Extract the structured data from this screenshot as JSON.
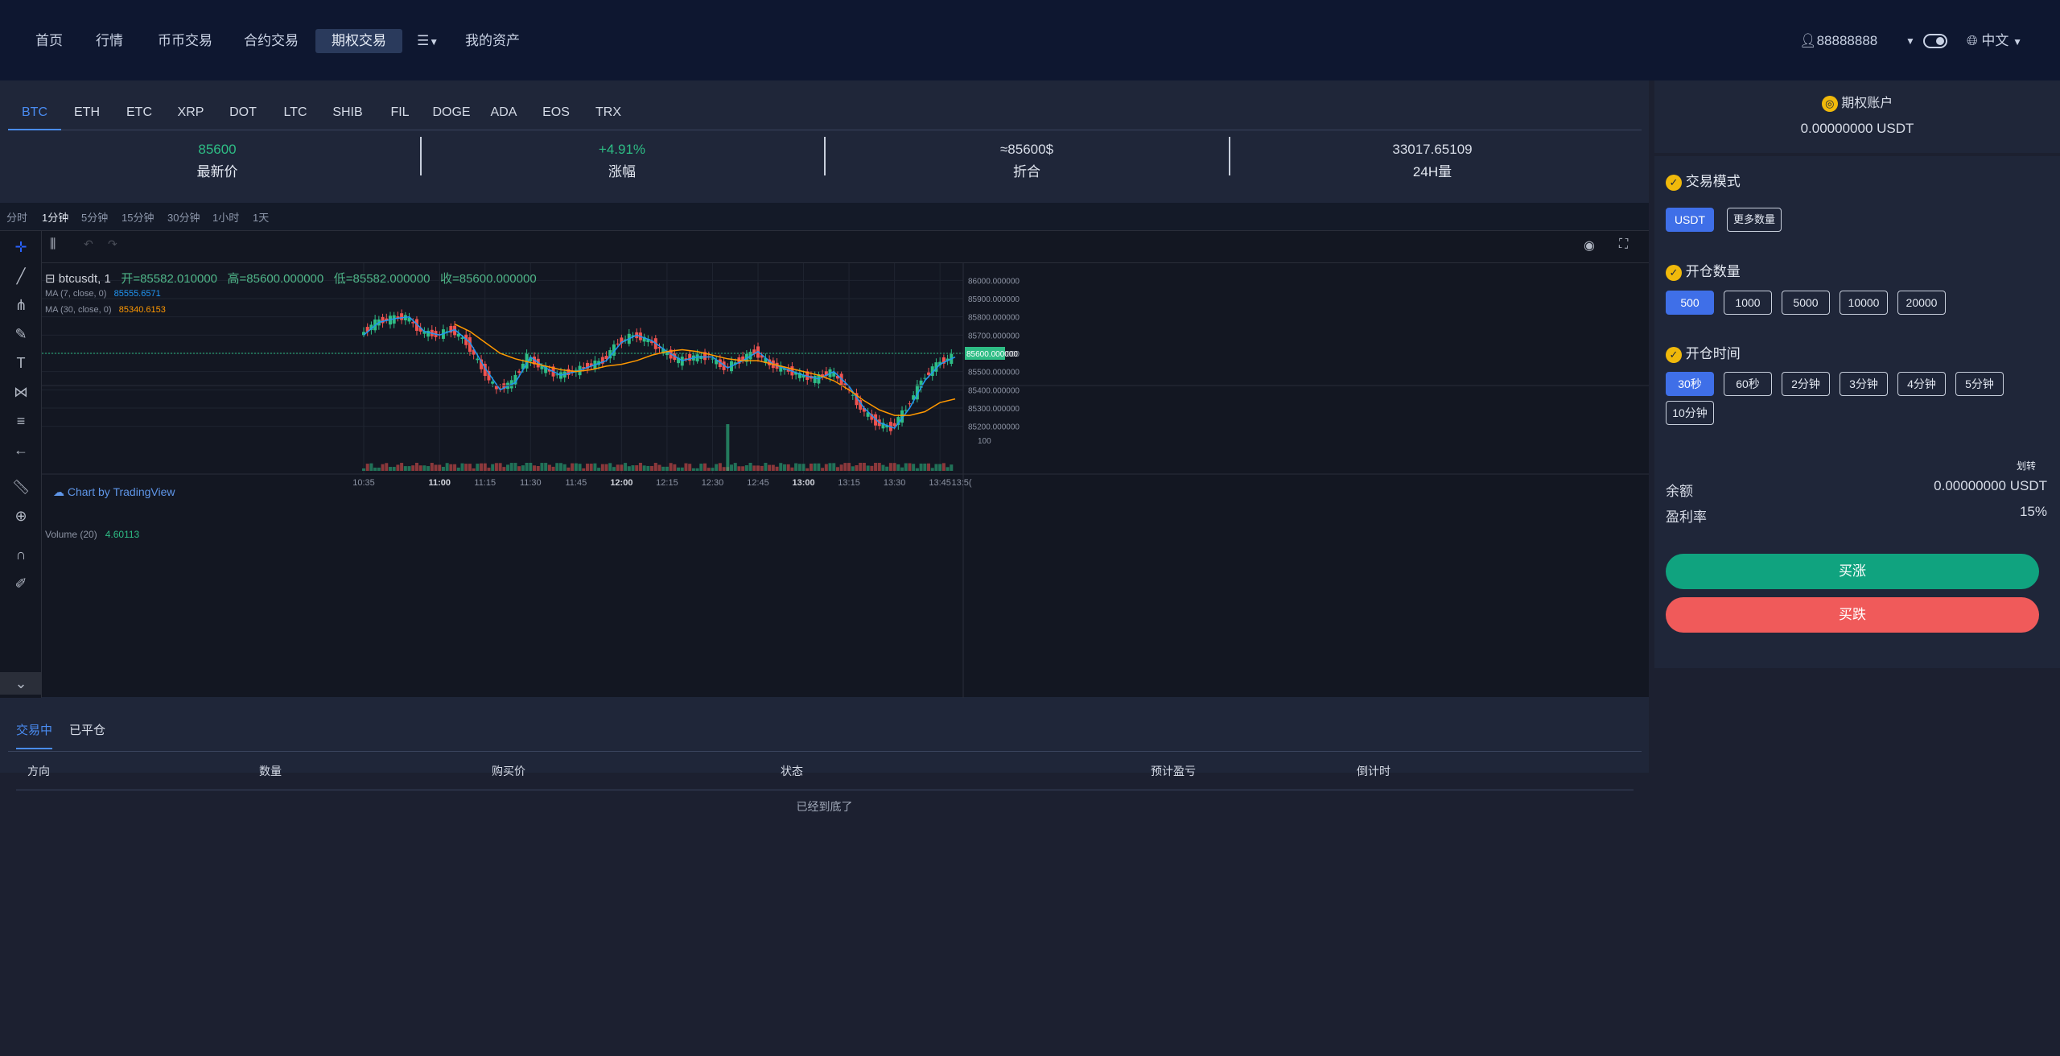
{
  "nav": {
    "items": [
      "首页",
      "行情",
      "币币交易",
      "合约交易",
      "期权交易",
      "我的资产"
    ],
    "active": "期权交易",
    "user": "88888888",
    "language": "中文"
  },
  "coins": {
    "tabs": [
      "BTC",
      "ETH",
      "ETC",
      "XRP",
      "DOT",
      "LTC",
      "SHIB",
      "FIL",
      "DOGE",
      "ADA",
      "EOS",
      "TRX"
    ],
    "active": "BTC"
  },
  "stats": [
    {
      "value": "85600",
      "label": "最新价",
      "color": "#2ebd85"
    },
    {
      "value": "+4.91%",
      "label": "涨幅",
      "color": "#2ebd85"
    },
    {
      "value": "≈85600$",
      "label": "折合",
      "color": "#e3e8f1"
    },
    {
      "value": "33017.65109",
      "label": "24H量",
      "color": "#e3e8f1"
    }
  ],
  "intervals": [
    "分时",
    "1分钟",
    "5分钟",
    "15分钟",
    "30分钟",
    "1小时",
    "1天"
  ],
  "active_interval": "1分钟",
  "chart_legend": {
    "symbol": "btcusdt, 1",
    "open": "开=85582.010000",
    "high": "高=85600.000000",
    "low": "低=85582.000000",
    "close": "收=85600.000000",
    "ma7_label": "MA (7, close, 0)",
    "ma7_value": "85555.6571",
    "ma30_label": "MA (30, close, 0)",
    "ma30_value": "85340.6153",
    "tv": "Chart by TradingView",
    "volume_label": "Volume (20)",
    "volume_value": "4.60113"
  },
  "chart_data": {
    "type": "line",
    "xlabel": "",
    "ylabel": "",
    "x_ticks": [
      "10:35",
      "11:00",
      "11:15",
      "11:30",
      "11:45",
      "12:00",
      "12:15",
      "12:30",
      "12:45",
      "13:00",
      "13:15",
      "13:30",
      "13:45",
      "13:5("
    ],
    "y_ticks": [
      "86000.000000",
      "85900.000000",
      "85800.000000",
      "85700.000000",
      "85600.000000",
      "85500.000000",
      "85400.000000",
      "85300.000000",
      "85200.000000"
    ],
    "volume_ticks": [
      "100"
    ],
    "last_price_tag": "85600.000000",
    "ylim": [
      85150,
      86050
    ],
    "x": [
      "10:35",
      "10:40",
      "10:45",
      "10:50",
      "10:55",
      "11:00",
      "11:05",
      "11:10",
      "11:15",
      "11:20",
      "11:25",
      "11:30",
      "11:35",
      "11:40",
      "11:45",
      "11:50",
      "11:55",
      "12:00",
      "12:05",
      "12:10",
      "12:15",
      "12:20",
      "12:25",
      "12:30",
      "12:35",
      "12:40",
      "12:45",
      "12:50",
      "12:55",
      "13:00",
      "13:05",
      "13:10",
      "13:15",
      "13:20",
      "13:25",
      "13:30",
      "13:35",
      "13:40",
      "13:45",
      "13:50"
    ],
    "series": [
      {
        "name": "MA (7, close, 0)",
        "color": "#2196f3",
        "values": [
          85700,
          85770,
          85790,
          85800,
          85720,
          85700,
          85730,
          85660,
          85520,
          85400,
          85440,
          85580,
          85520,
          85480,
          85500,
          85530,
          85560,
          85660,
          85700,
          85670,
          85610,
          85560,
          85580,
          85580,
          85520,
          85560,
          85610,
          85540,
          85510,
          85480,
          85460,
          85500,
          85420,
          85300,
          85220,
          85190,
          85300,
          85450,
          85540,
          85580
        ]
      },
      {
        "name": "MA (30, close, 0)",
        "color": "#ff9800",
        "values": [
          null,
          null,
          null,
          null,
          null,
          null,
          85760,
          85720,
          85660,
          85600,
          85570,
          85550,
          85530,
          85510,
          85500,
          85510,
          85530,
          85540,
          85560,
          85590,
          85610,
          85620,
          85610,
          85590,
          85570,
          85560,
          85560,
          85540,
          85520,
          85500,
          85480,
          85450,
          85400,
          85340,
          85290,
          85260,
          85260,
          85280,
          85330,
          85350
        ]
      }
    ]
  },
  "orders": {
    "tabs": [
      "交易中",
      "已平仓"
    ],
    "active": "交易中",
    "columns": [
      "方向",
      "数量",
      "购买价",
      "状态",
      "预计盈亏",
      "倒计时"
    ],
    "empty": "已经到底了"
  },
  "account": {
    "title": "期权账户",
    "balance": "0.00000000 USDT"
  },
  "trade": {
    "mode_title": "交易模式",
    "modes": [
      "USDT",
      "更多数量"
    ],
    "active_mode": "USDT",
    "amount_title": "开仓数量",
    "amounts": [
      "500",
      "1000",
      "5000",
      "10000",
      "20000"
    ],
    "active_amount": "500",
    "time_title": "开仓时间",
    "times": [
      "30秒",
      "60秒",
      "2分钟",
      "3分钟",
      "4分钟",
      "5分钟",
      "10分钟"
    ],
    "active_time": "30秒",
    "transfer": "划转",
    "balance_label": "余额",
    "balance_value": "0.00000000 USDT",
    "profit_label": "盈利率",
    "profit_value": "15%",
    "buy_up": "买涨",
    "buy_down": "买跌"
  },
  "colors": {
    "up": "#2ebd85",
    "down": "#ef5350",
    "accent": "#3f6fe8",
    "buy_up_btn": "#10a37f",
    "buy_down_btn": "#f05a5a"
  }
}
